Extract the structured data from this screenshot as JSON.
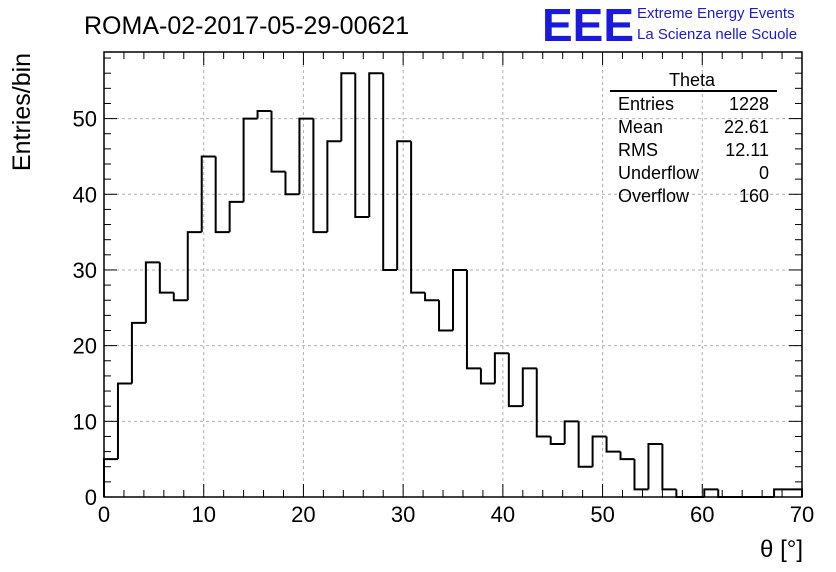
{
  "chart_data": {
    "type": "histogram",
    "title": "ROMA-02-2017-05-29-00621",
    "xlabel": "θ [°]",
    "ylabel": "Entries/bin",
    "xlim": [
      0,
      70
    ],
    "ylim": [
      0,
      58.8
    ],
    "bin_width": 1.4,
    "x_ticks": [
      "0",
      "10",
      "20",
      "30",
      "40",
      "50",
      "60",
      "70"
    ],
    "y_ticks": [
      "0",
      "10",
      "20",
      "30",
      "40",
      "50"
    ],
    "grid": true,
    "values": [
      5,
      15,
      23,
      31,
      27,
      26,
      35,
      45,
      35,
      39,
      50,
      51,
      43,
      40,
      50,
      35,
      47,
      56,
      37,
      56,
      30,
      47,
      27,
      26,
      22,
      30,
      17,
      15,
      19,
      12,
      17,
      8,
      7,
      10,
      4,
      8,
      6,
      5,
      1,
      7,
      1,
      0,
      0,
      1,
      0,
      0,
      0,
      0,
      1,
      1
    ],
    "stats_box": {
      "title": "Theta",
      "rows": [
        {
          "label": "Entries",
          "value": "1228"
        },
        {
          "label": "Mean",
          "value": "22.61"
        },
        {
          "label": "RMS",
          "value": "12.11"
        },
        {
          "label": "Underflow",
          "value": "0"
        },
        {
          "label": "Overflow",
          "value": "160"
        }
      ]
    },
    "logo": {
      "mark": "EEE",
      "line1": "Extreme Energy Events",
      "line2": "La Scienza nelle Scuole",
      "color": "#1a1adc"
    }
  }
}
